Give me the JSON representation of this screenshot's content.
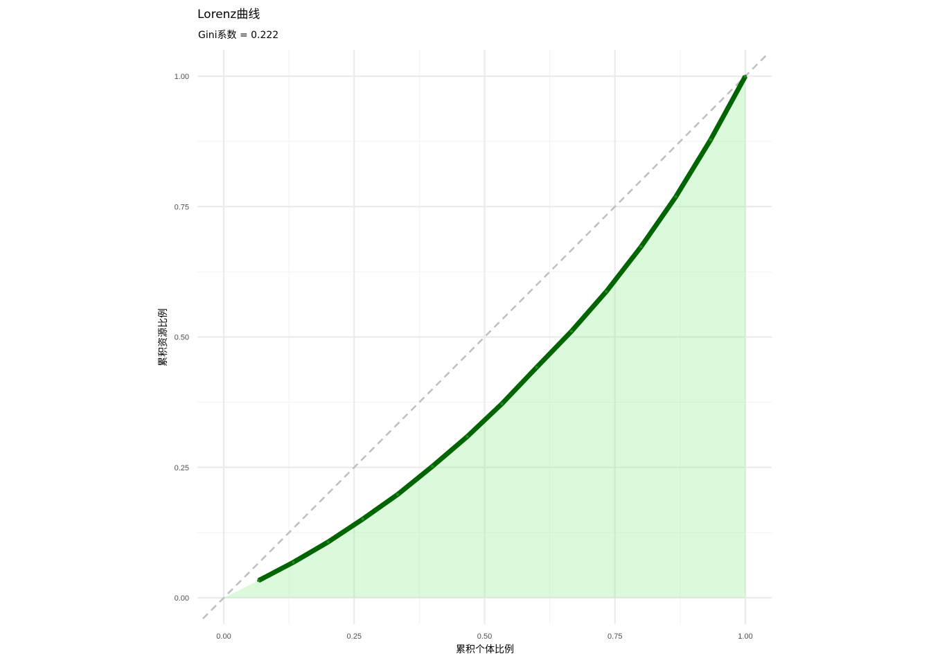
{
  "chart_data": {
    "type": "line",
    "title": "Lorenz曲线",
    "subtitle": "Gini系数 = 0.222",
    "xlabel": "累积个体比例",
    "ylabel": "累积资源比例",
    "xlim": [
      0,
      1
    ],
    "ylim": [
      0,
      1
    ],
    "x_ticks": [
      "0.00",
      "0.25",
      "0.50",
      "0.75",
      "1.00"
    ],
    "y_ticks": [
      "0.00",
      "0.25",
      "0.50",
      "0.75",
      "1.00"
    ],
    "grid": true,
    "series": [
      {
        "x": [
          0.0667,
          0.1333,
          0.2,
          0.2667,
          0.3333,
          0.4,
          0.4667,
          0.5333,
          0.6,
          0.6667,
          0.7333,
          0.8,
          0.8667,
          0.9333,
          1.0
        ],
        "y": [
          0.033,
          0.068,
          0.107,
          0.151,
          0.198,
          0.252,
          0.309,
          0.372,
          0.442,
          0.511,
          0.587,
          0.673,
          0.769,
          0.878,
          1.0
        ]
      }
    ],
    "equality_line": {
      "x": [
        0,
        1
      ],
      "y": [
        0,
        1
      ],
      "style": "dashed"
    },
    "colors": {
      "line": "#006400",
      "area": "#90ee90",
      "equality": "#bebebe"
    }
  }
}
